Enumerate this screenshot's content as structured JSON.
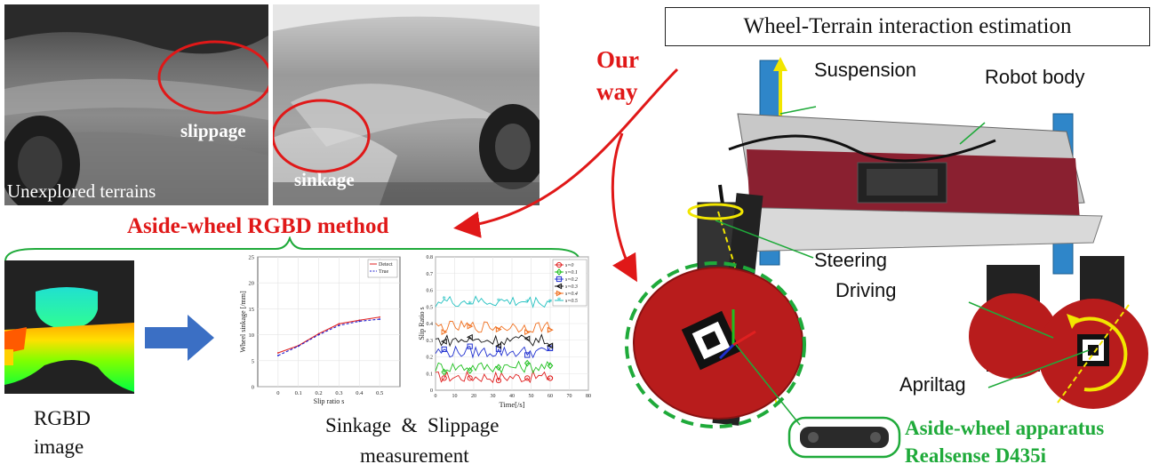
{
  "title_box": "Wheel-Terrain interaction estimation",
  "our_way": [
    "Our",
    "way"
  ],
  "photos": {
    "left_caption": "Unexplored terrains",
    "slippage": "slippage",
    "sinkage": "sinkage"
  },
  "method_label": "Aside-wheel RGBD method",
  "rgbd": [
    "RGBD",
    "image"
  ],
  "measurement": [
    "Sinkage  &  Slippage",
    "measurement"
  ],
  "robot_labels": {
    "suspension": "Suspension",
    "robot_body": "Robot body",
    "steering": "Steering",
    "driving": "Driving",
    "apriltag": "Apriltag"
  },
  "apparatus": [
    "Aside-wheel apparatus",
    "Realsense D435i"
  ],
  "colors": {
    "red_label": "#e01818",
    "green_label": "#1faa3a",
    "arrow_blue": "#3b6fc4",
    "robot_red": "#b81c1c",
    "robot_blue": "#2f86c9"
  },
  "chart_data": [
    {
      "type": "line",
      "xlabel": "Slip ratio s",
      "ylabel": "Wheel sinkage [/mm]",
      "x": [
        0,
        0.1,
        0.2,
        0.3,
        0.4,
        0.5
      ],
      "xticks": [
        "0",
        "0.1",
        "0.2",
        "0.3",
        "0.4",
        "0.5"
      ],
      "yticks": [
        "0",
        "5",
        "10",
        "15",
        "20",
        "25"
      ],
      "xlim": [
        -0.1,
        0.6
      ],
      "ylim": [
        0,
        25
      ],
      "grid": true,
      "legend_position": "top-right",
      "series": [
        {
          "name": "Detect",
          "color": "#e02020",
          "style": "solid",
          "values": [
            6.5,
            7.9,
            10.2,
            12.1,
            12.8,
            13.4
          ]
        },
        {
          "name": "True",
          "color": "#2020d0",
          "style": "dashed",
          "values": [
            6.0,
            7.8,
            10.0,
            11.8,
            12.6,
            13.0
          ]
        }
      ]
    },
    {
      "type": "line",
      "xlabel": "Time[/s]",
      "ylabel": "Slip Ratio s",
      "xticks": [
        "0",
        "10",
        "20",
        "30",
        "40",
        "50",
        "60",
        "70",
        "80"
      ],
      "yticks": [
        "0",
        "0.1",
        "0.2",
        "0.3",
        "0.4",
        "0.5",
        "0.6",
        "0.7",
        "0.8"
      ],
      "xlim": [
        0,
        80
      ],
      "ylim": [
        0,
        0.8
      ],
      "grid": true,
      "legend_position": "top-right",
      "series": [
        {
          "name": "s=0",
          "color": "#e02020",
          "marker": "o",
          "level": 0.08
        },
        {
          "name": "s=0.1",
          "color": "#20c020",
          "marker": "d",
          "level": 0.14
        },
        {
          "name": "s=0.2",
          "color": "#2030d0",
          "marker": "s",
          "level": 0.23
        },
        {
          "name": "s=0.3",
          "color": "#111111",
          "marker": "<",
          "level": 0.3
        },
        {
          "name": "s=0.4",
          "color": "#f07020",
          "marker": ">",
          "level": 0.38
        },
        {
          "name": "s=0.5",
          "color": "#20c0c0",
          "marker": "*",
          "level": 0.53
        }
      ]
    }
  ]
}
